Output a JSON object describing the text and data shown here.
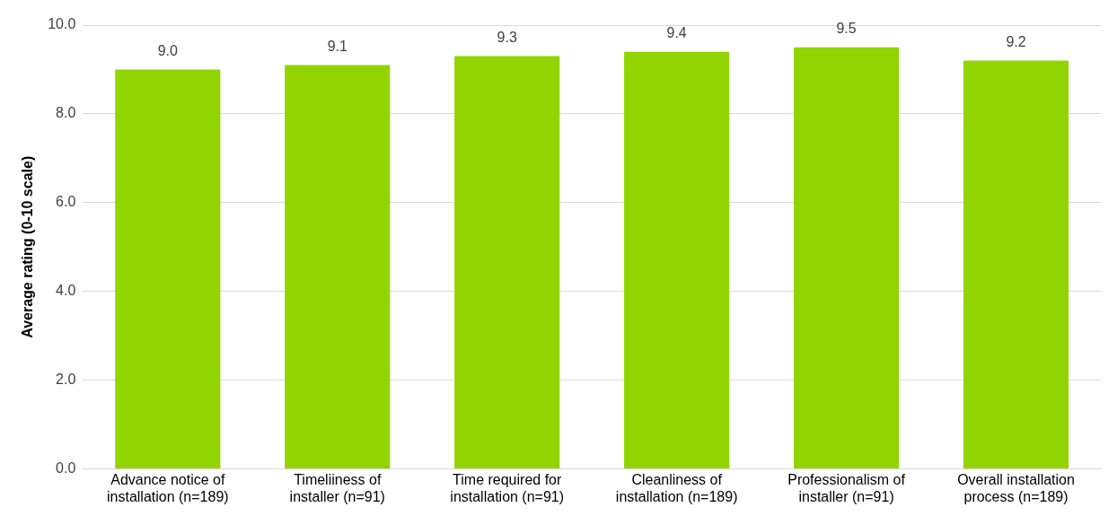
{
  "chart_data": {
    "type": "bar",
    "ylabel": "Average rating (0-10 scale)",
    "categories": [
      "Advance notice of installation (n=189)",
      "Timeliiness of installer (n=91)",
      "Time required for installation (n=91)",
      "Cleanliness of installation (n=189)",
      "Professionalism of installer (n=91)",
      "Overall installation process (n=189)"
    ],
    "values": [
      9.0,
      9.1,
      9.3,
      9.4,
      9.5,
      9.2
    ],
    "value_labels": [
      "9.0",
      "9.1",
      "9.3",
      "9.4",
      "9.5",
      "9.2"
    ],
    "color": "#92d400",
    "ylim": [
      0,
      10
    ],
    "yticks": [
      {
        "value": 0,
        "label": "0.0"
      },
      {
        "value": 2,
        "label": "2.0"
      },
      {
        "value": 4,
        "label": "4.0"
      },
      {
        "value": 6,
        "label": "6.0"
      },
      {
        "value": 8,
        "label": "8.0"
      },
      {
        "value": 10,
        "label": "10.0"
      }
    ],
    "grid": "y",
    "legend": false
  }
}
